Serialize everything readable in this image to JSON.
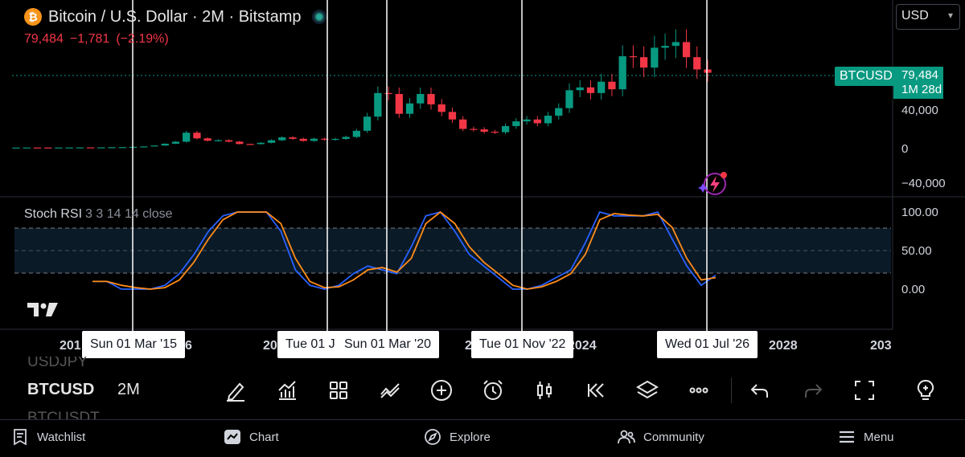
{
  "header": {
    "symbol_title": "Bitcoin / U.S. Dollar · 2M · Bitstamp",
    "logo_glyph": "₿",
    "last_price": "79,484",
    "change": "−1,781",
    "change_pct": "(−2.19%)"
  },
  "currency": {
    "selected": "USD"
  },
  "price_axis": {
    "symbol_tag": "BTCUSD",
    "current_price": "79,484",
    "countdown": "1M 28d",
    "labels": [
      "40,000",
      "0",
      "−40,000"
    ]
  },
  "indicator": {
    "name": "Stoch RSI",
    "params": "3 3 14 14 close",
    "axis_labels": [
      "100.00",
      "50.00",
      "0.00"
    ]
  },
  "time_axis": {
    "years": [
      "201",
      "6",
      "20",
      "20",
      "2024",
      "2028",
      "203"
    ],
    "crosshair_dates": [
      "Sun 01 Mar '15",
      "Tue 01 J",
      "Sun 01 Mar '20",
      "Tue 01 Nov '22",
      "Wed 01 Jul '26"
    ]
  },
  "toolbar": {
    "symbol": "BTCUSD",
    "interval": "2M",
    "faded_above": "USDJPY",
    "faded_below": "BTCUSDT",
    "icons": [
      "pencil-icon",
      "indicators-icon",
      "apps-grid-icon",
      "compare-icon",
      "add-icon",
      "alarm-icon",
      "candle-type-icon",
      "replay-icon",
      "layers-icon",
      "more-icon",
      "undo-icon",
      "redo-icon",
      "fullscreen-icon",
      "lightbulb-icon"
    ]
  },
  "bottom_nav": {
    "items": [
      {
        "label": "Watchlist",
        "icon": "watchlist-icon"
      },
      {
        "label": "Chart",
        "icon": "chart-icon"
      },
      {
        "label": "Explore",
        "icon": "compass-icon"
      },
      {
        "label": "Community",
        "icon": "community-icon"
      },
      {
        "label": "Menu",
        "icon": "menu-icon"
      }
    ]
  },
  "colors": {
    "up": "#089981",
    "down": "#f23645",
    "k_line": "#2962ff",
    "d_line": "#ff8c1a",
    "band": "#0e1a26"
  },
  "chart_data": {
    "type": "candlestick",
    "price_axis_ticks": [
      40000,
      0,
      -40000
    ],
    "last_price": 79484,
    "candles_close_approx": [
      200,
      250,
      240,
      230,
      280,
      300,
      420,
      380,
      430,
      600,
      700,
      1000,
      1400,
      2400,
      4300,
      6400,
      16000,
      10000,
      7500,
      8000,
      6500,
      4000,
      3900,
      5300,
      8000,
      11000,
      9500,
      7300,
      9600,
      8600,
      9400,
      11500,
      18000,
      33000,
      58000,
      57000,
      36000,
      47000,
      57000,
      46000,
      38000,
      30000,
      20000,
      19500,
      17000,
      16500,
      23000,
      28000,
      30000,
      26000,
      34000,
      42000,
      61000,
      64000,
      58000,
      70000,
      62000,
      97000,
      96000,
      85000,
      106000,
      108000,
      112000,
      96000,
      83000,
      79484
    ],
    "stoch_rsi": {
      "k_approx": [
        10,
        10,
        0,
        0,
        0,
        5,
        20,
        45,
        75,
        95,
        100,
        100,
        100,
        75,
        25,
        5,
        0,
        5,
        20,
        30,
        25,
        20,
        55,
        95,
        100,
        75,
        45,
        30,
        15,
        0,
        0,
        5,
        15,
        25,
        60,
        100,
        95,
        95,
        95,
        100,
        65,
        30,
        5,
        18
      ],
      "d_approx": [
        10,
        10,
        5,
        2,
        0,
        2,
        12,
        35,
        65,
        90,
        100,
        100,
        100,
        85,
        40,
        10,
        2,
        3,
        12,
        25,
        28,
        22,
        40,
        85,
        100,
        85,
        55,
        35,
        20,
        5,
        0,
        3,
        10,
        20,
        45,
        90,
        98,
        96,
        95,
        97,
        80,
        40,
        12,
        15
      ],
      "upper_band": 80,
      "mid": 50,
      "lower_band": 20,
      "ylim": [
        0,
        100
      ]
    }
  }
}
